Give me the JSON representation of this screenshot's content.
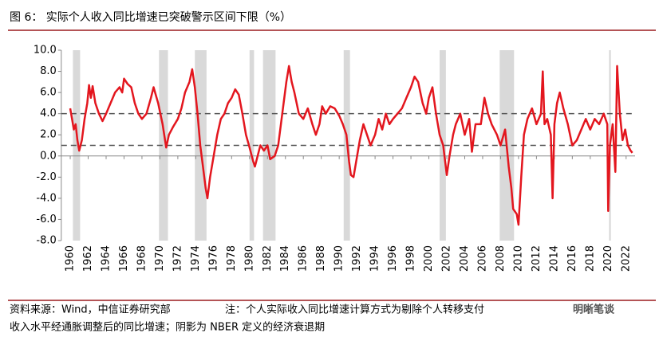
{
  "chart_data": {
    "type": "line",
    "title": "图 6：  实际个人收入同比增速已突破警示区间下限（%）",
    "source": "资料来源：Wind，中信证券研究部",
    "note_line1": "注：个人实际收入同比增速计算方式为剔除个人转移支付",
    "note_line2": "收入水平经通胀调整后的同比增速；阴影为 NBER 定义的经济衰退期",
    "watermark": "明晰笔谈",
    "color": "#e3161e",
    "x": [
      1960.0,
      1960.2,
      1960.4,
      1960.6,
      1960.8,
      1961.0,
      1961.3,
      1961.6,
      1961.9,
      1962.1,
      1962.3,
      1962.5,
      1962.8,
      1963.2,
      1963.6,
      1964.0,
      1964.5,
      1965.0,
      1965.5,
      1965.8,
      1966.0,
      1966.4,
      1966.8,
      1967.2,
      1967.6,
      1968.0,
      1968.5,
      1969.0,
      1969.3,
      1969.8,
      1970.3,
      1970.7,
      1971.0,
      1971.5,
      1972.0,
      1972.4,
      1972.8,
      1973.3,
      1973.6,
      1973.9,
      1974.2,
      1974.5,
      1974.8,
      1975.1,
      1975.3,
      1975.6,
      1976.0,
      1976.4,
      1976.8,
      1977.2,
      1977.6,
      1978.0,
      1978.4,
      1978.8,
      1979.2,
      1979.6,
      1980.0,
      1980.4,
      1980.6,
      1980.9,
      1981.2,
      1981.6,
      1982.0,
      1982.3,
      1982.8,
      1983.2,
      1983.5,
      1983.8,
      1984.1,
      1984.4,
      1984.7,
      1985.0,
      1985.5,
      1986.0,
      1986.5,
      1987.0,
      1987.4,
      1987.8,
      1988.1,
      1988.5,
      1989.0,
      1989.5,
      1990.0,
      1990.4,
      1990.8,
      1991.1,
      1991.3,
      1991.6,
      1992.0,
      1992.3,
      1992.7,
      1993.1,
      1993.5,
      1994.0,
      1994.4,
      1994.8,
      1995.2,
      1995.6,
      1996.0,
      1996.5,
      1997.0,
      1997.5,
      1998.0,
      1998.4,
      1998.8,
      1999.3,
      1999.7,
      2000.0,
      2000.4,
      2000.8,
      2001.2,
      2001.6,
      2002.0,
      2002.3,
      2002.7,
      2003.0,
      2003.5,
      2004.0,
      2004.5,
      2004.8,
      2005.2,
      2005.8,
      2006.2,
      2006.6,
      2007.0,
      2007.6,
      2008.0,
      2008.5,
      2008.9,
      2009.2,
      2009.4,
      2009.8,
      2010.0,
      2010.3,
      2010.6,
      2011.0,
      2011.5,
      2012.0,
      2012.5,
      2012.7,
      2012.9,
      2013.2,
      2013.6,
      2013.8,
      2014.0,
      2014.3,
      2014.6,
      2015.0,
      2015.5,
      2016.0,
      2016.5,
      2017.0,
      2017.5,
      2018.0,
      2018.5,
      2019.0,
      2019.5,
      2019.9,
      2020.0,
      2020.2,
      2020.5,
      2020.8,
      2021.0,
      2021.3,
      2021.6,
      2021.9,
      2022.2,
      2022.5,
      2022.7
    ],
    "values": [
      4.5,
      3.5,
      2.5,
      3.0,
      1.5,
      0.5,
      1.5,
      3.5,
      5.0,
      6.7,
      5.5,
      6.6,
      5.0,
      4.0,
      3.3,
      4.0,
      5.0,
      6.0,
      6.5,
      6.0,
      7.3,
      6.8,
      6.5,
      5.0,
      4.0,
      3.5,
      4.0,
      5.5,
      6.5,
      5.0,
      3.0,
      0.8,
      2.0,
      2.8,
      3.5,
      4.5,
      6.0,
      7.0,
      8.2,
      6.5,
      4.0,
      1.0,
      -1.0,
      -3.0,
      -4.0,
      -2.0,
      0.0,
      2.0,
      3.5,
      4.0,
      5.0,
      5.5,
      6.3,
      5.8,
      4.0,
      2.0,
      0.8,
      -0.5,
      -1.0,
      0.0,
      1.0,
      0.5,
      1.0,
      -0.3,
      0.0,
      1.0,
      3.0,
      5.0,
      7.0,
      8.5,
      7.0,
      6.0,
      4.0,
      3.5,
      4.5,
      3.0,
      2.0,
      3.0,
      4.7,
      4.0,
      4.7,
      4.5,
      3.8,
      3.0,
      2.0,
      -0.5,
      -1.8,
      -2.0,
      0.0,
      1.5,
      3.0,
      2.0,
      1.0,
      2.0,
      3.5,
      2.5,
      4.0,
      3.0,
      3.5,
      4.0,
      4.5,
      5.5,
      6.5,
      7.5,
      7.0,
      5.0,
      4.0,
      5.5,
      6.5,
      4.0,
      2.0,
      1.0,
      -1.8,
      0.0,
      2.0,
      3.0,
      4.0,
      2.0,
      3.5,
      0.4,
      3.0,
      3.0,
      5.5,
      4.0,
      3.0,
      2.0,
      1.0,
      2.5,
      -1.0,
      -3.0,
      -5.0,
      -5.5,
      -6.5,
      -2.0,
      2.0,
      3.5,
      4.5,
      3.0,
      4.0,
      8.0,
      3.0,
      3.5,
      2.0,
      -4.0,
      3.0,
      5.0,
      6.0,
      4.5,
      3.0,
      1.0,
      1.5,
      2.5,
      3.5,
      2.5,
      3.5,
      3.0,
      4.0,
      3.0,
      -5.2,
      1.0,
      3.0,
      -1.5,
      8.5,
      4.0,
      1.5,
      2.5,
      1.0,
      0.5,
      0.3
    ],
    "recessions": [
      [
        1960.3,
        1961.1
      ],
      [
        1969.9,
        1970.9
      ],
      [
        1973.9,
        1975.2
      ],
      [
        1980.0,
        1980.5
      ],
      [
        1981.5,
        1982.9
      ],
      [
        1990.5,
        1991.2
      ],
      [
        2001.2,
        2001.9
      ],
      [
        2007.9,
        2009.5
      ],
      [
        2020.1,
        2020.3
      ]
    ],
    "hlines": [
      4,
      1
    ],
    "xlim": [
      1959,
      2023
    ],
    "xticks": [
      1960,
      1962,
      1964,
      1966,
      1968,
      1970,
      1972,
      1974,
      1976,
      1978,
      1980,
      1982,
      1984,
      1986,
      1988,
      1990,
      1992,
      1994,
      1996,
      1998,
      2000,
      2002,
      2004,
      2006,
      2008,
      2010,
      2012,
      2014,
      2016,
      2018,
      2020,
      2022
    ],
    "ylim": [
      -8,
      10
    ],
    "yticks": [
      {
        "value": -8,
        "label": "-8.0"
      },
      {
        "value": -6,
        "label": "-6.0"
      },
      {
        "value": -4,
        "label": "-4.0"
      },
      {
        "value": -2,
        "label": "-2.0"
      },
      {
        "value": 0,
        "label": "0.0"
      },
      {
        "value": 2,
        "label": "2.0"
      },
      {
        "value": 4,
        "label": "4.0"
      },
      {
        "value": 6,
        "label": "6.0"
      },
      {
        "value": 8,
        "label": "8.0"
      },
      {
        "value": 10,
        "label": "10.0"
      }
    ]
  }
}
